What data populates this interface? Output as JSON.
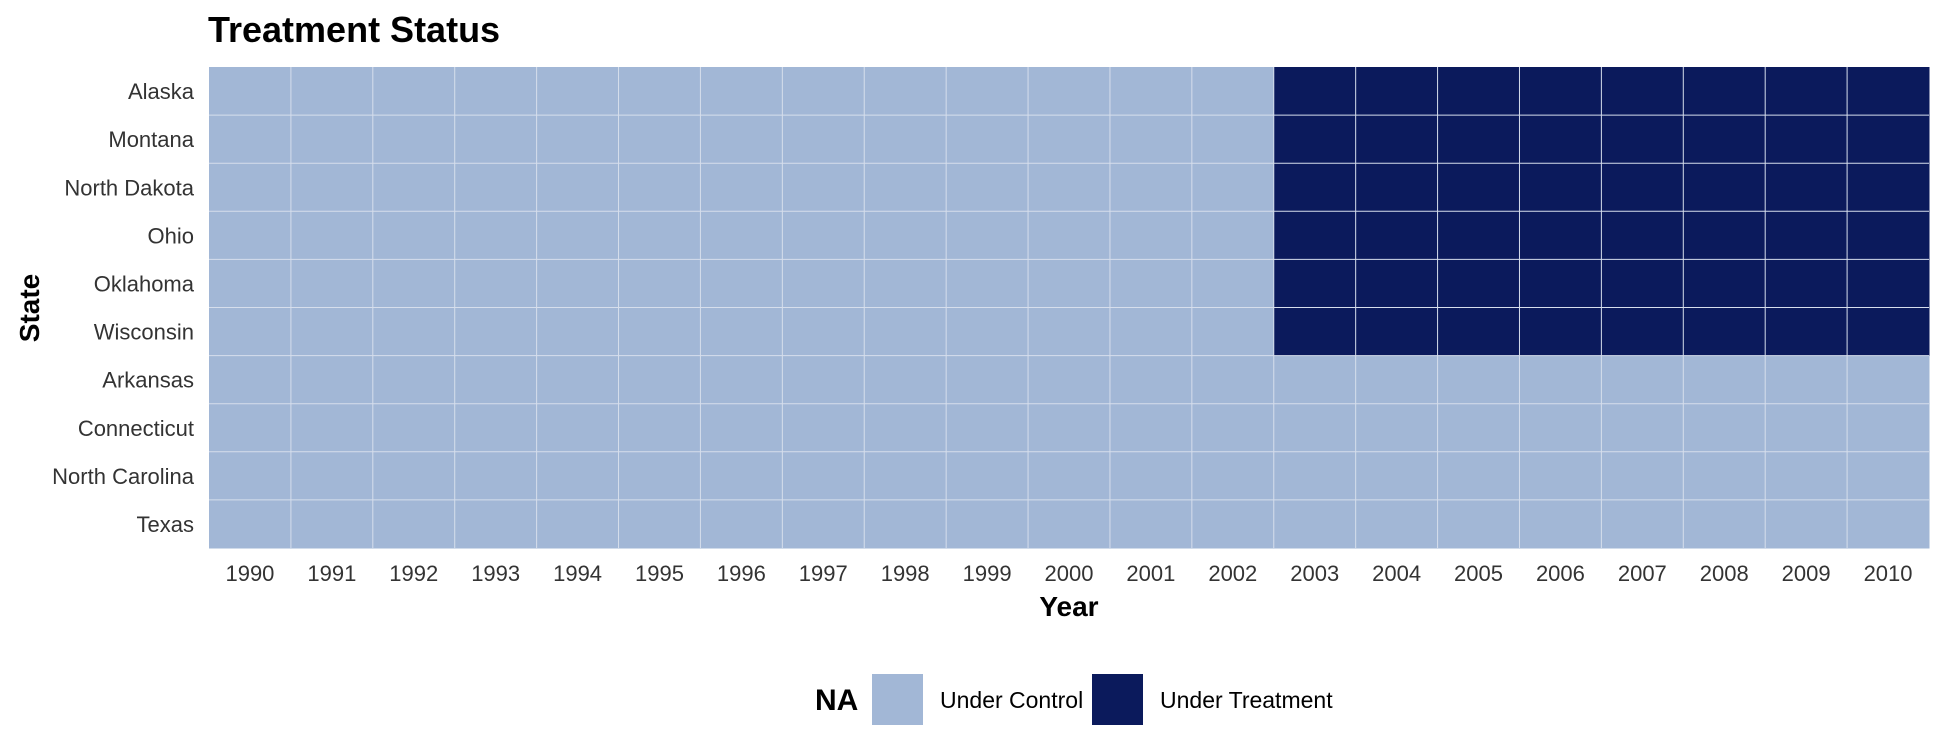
{
  "chart_data": {
    "type": "heatmap",
    "title": "Treatment Status",
    "xlabel": "Year",
    "ylabel": "State",
    "x": [
      1990,
      1991,
      1992,
      1993,
      1994,
      1995,
      1996,
      1997,
      1998,
      1999,
      2000,
      2001,
      2002,
      2003,
      2004,
      2005,
      2006,
      2007,
      2008,
      2009,
      2010
    ],
    "y": [
      "Alaska",
      "Montana",
      "North Dakota",
      "Ohio",
      "Oklahoma",
      "Wisconsin",
      "Arkansas",
      "Connecticut",
      "North Carolina",
      "Texas"
    ],
    "values": [
      [
        0,
        0,
        0,
        0,
        0,
        0,
        0,
        0,
        0,
        0,
        0,
        0,
        0,
        1,
        1,
        1,
        1,
        1,
        1,
        1,
        1
      ],
      [
        0,
        0,
        0,
        0,
        0,
        0,
        0,
        0,
        0,
        0,
        0,
        0,
        0,
        1,
        1,
        1,
        1,
        1,
        1,
        1,
        1
      ],
      [
        0,
        0,
        0,
        0,
        0,
        0,
        0,
        0,
        0,
        0,
        0,
        0,
        0,
        1,
        1,
        1,
        1,
        1,
        1,
        1,
        1
      ],
      [
        0,
        0,
        0,
        0,
        0,
        0,
        0,
        0,
        0,
        0,
        0,
        0,
        0,
        1,
        1,
        1,
        1,
        1,
        1,
        1,
        1
      ],
      [
        0,
        0,
        0,
        0,
        0,
        0,
        0,
        0,
        0,
        0,
        0,
        0,
        0,
        1,
        1,
        1,
        1,
        1,
        1,
        1,
        1
      ],
      [
        0,
        0,
        0,
        0,
        0,
        0,
        0,
        0,
        0,
        0,
        0,
        0,
        0,
        1,
        1,
        1,
        1,
        1,
        1,
        1,
        1
      ],
      [
        0,
        0,
        0,
        0,
        0,
        0,
        0,
        0,
        0,
        0,
        0,
        0,
        0,
        0,
        0,
        0,
        0,
        0,
        0,
        0,
        0
      ],
      [
        0,
        0,
        0,
        0,
        0,
        0,
        0,
        0,
        0,
        0,
        0,
        0,
        0,
        0,
        0,
        0,
        0,
        0,
        0,
        0,
        0
      ],
      [
        0,
        0,
        0,
        0,
        0,
        0,
        0,
        0,
        0,
        0,
        0,
        0,
        0,
        0,
        0,
        0,
        0,
        0,
        0,
        0,
        0
      ],
      [
        0,
        0,
        0,
        0,
        0,
        0,
        0,
        0,
        0,
        0,
        0,
        0,
        0,
        0,
        0,
        0,
        0,
        0,
        0,
        0,
        0
      ]
    ],
    "legend": {
      "title": "NA",
      "position": "bottom",
      "entries": [
        {
          "label": "Under Control",
          "value": 0,
          "color": "#a2b7d6"
        },
        {
          "label": "Under Treatment",
          "value": 1,
          "color": "#0b1a5c"
        }
      ]
    },
    "grid": true,
    "grid_color": "#d6deec"
  }
}
